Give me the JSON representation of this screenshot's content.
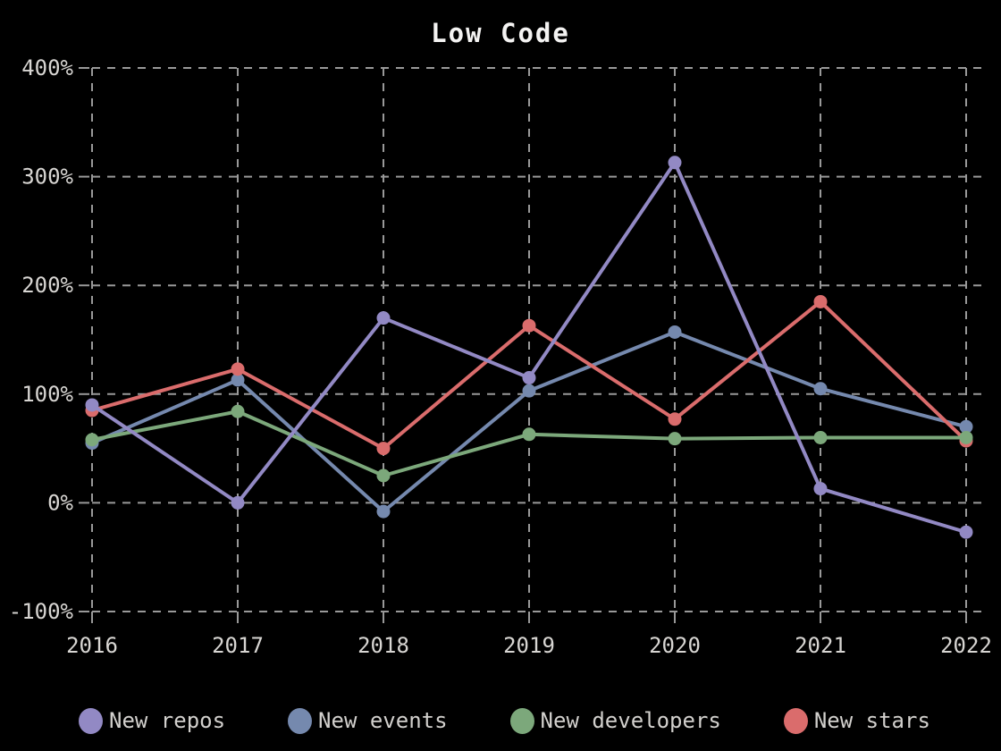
{
  "page": {
    "background_color": "#000000",
    "text_color": "#d8d6d3",
    "grid_color": "#999999",
    "title_color": "#f4f3f2"
  },
  "chart_data": {
    "type": "line",
    "title": "Low Code",
    "categories": [
      "2016",
      "2017",
      "2018",
      "2019",
      "2020",
      "2021",
      "2022"
    ],
    "xlabel": "",
    "ylabel": "",
    "ylim": [
      -100,
      400
    ],
    "grid": "dashed",
    "legend_position": "bottom",
    "y_ticks": [
      {
        "label": "400%",
        "value": 400
      },
      {
        "label": "300%",
        "value": 300
      },
      {
        "label": "200%",
        "value": 200
      },
      {
        "label": "100%",
        "value": 100
      },
      {
        "label": "0%",
        "value": 0
      },
      {
        "label": "-100%",
        "value": -100
      }
    ],
    "series": [
      {
        "name": "New repos",
        "color": "#9289c4",
        "values": [
          90,
          0,
          170,
          115,
          313,
          13,
          -27
        ]
      },
      {
        "name": "New events",
        "color": "#7589ae",
        "values": [
          55,
          113,
          -8,
          103,
          157,
          105,
          70
        ]
      },
      {
        "name": "New developers",
        "color": "#7ca87b",
        "values": [
          58,
          84,
          25,
          63,
          59,
          60,
          60
        ]
      },
      {
        "name": "New stars",
        "color": "#da6c6c",
        "values": [
          85,
          123,
          50,
          163,
          77,
          185,
          57
        ]
      }
    ]
  }
}
